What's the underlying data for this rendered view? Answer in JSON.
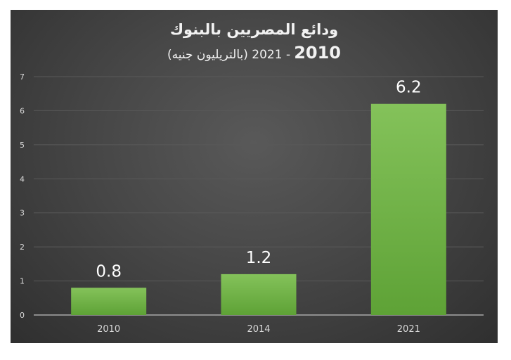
{
  "chart_data": {
    "type": "bar",
    "title": "ودائع المصريين بالبنوك",
    "subtitle_bold": "2010",
    "subtitle_rest": "- 2021 (بالتريليون جنيه)",
    "categories": [
      "2010",
      "2014",
      "2021"
    ],
    "values": [
      0.8,
      1.2,
      6.2
    ],
    "data_labels": [
      "0.8",
      "1.2",
      "6.2"
    ],
    "y_ticks": [
      "0",
      "1",
      "2",
      "3",
      "4",
      "5",
      "6",
      "7"
    ],
    "ylim": [
      0,
      7
    ],
    "xlabel": "",
    "ylabel": "",
    "grid": true,
    "legend": "none",
    "colors": {
      "bar_light": "#84c25a",
      "bar_dark": "#5ea236",
      "background": "#404040",
      "gridline": "#595959",
      "text": "#d9d9d9"
    }
  }
}
